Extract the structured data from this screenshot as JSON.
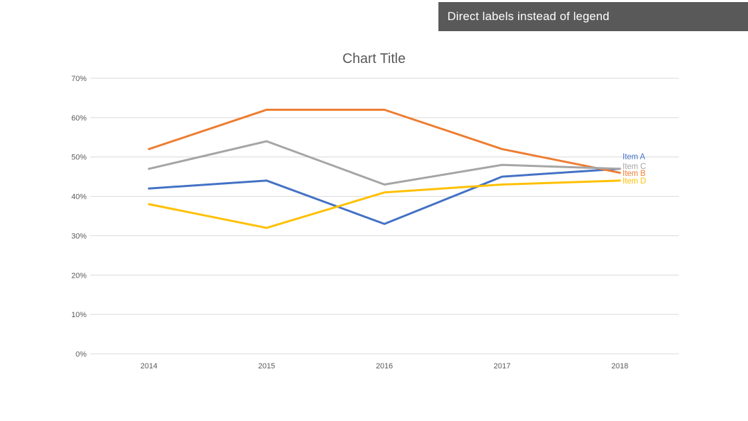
{
  "banner": {
    "title": "Direct labels instead of legend",
    "bg_color": "#595959",
    "text_color": "#FFFFFF"
  },
  "chart_data": {
    "type": "line",
    "title": "Chart Title",
    "categories": [
      "2014",
      "2015",
      "2016",
      "2017",
      "2018"
    ],
    "series": [
      {
        "name": "Item A",
        "color": "#4472C4",
        "values": [
          42,
          44,
          33,
          45,
          47
        ]
      },
      {
        "name": "Item B",
        "color": "#ED7D31",
        "values": [
          52,
          62,
          62,
          52,
          46
        ]
      },
      {
        "name": "Item C",
        "color": "#A5A5A5",
        "values": [
          47,
          54,
          43,
          48,
          47
        ]
      },
      {
        "name": "Item D",
        "color": "#FFC000",
        "values": [
          38,
          32,
          41,
          43,
          44
        ]
      }
    ],
    "ylim": [
      0,
      70
    ],
    "ytick_step": 10,
    "yticks": [
      "0%",
      "10%",
      "20%",
      "30%",
      "40%",
      "50%",
      "60%",
      "70%"
    ],
    "xlabel": "",
    "ylabel": "",
    "grid": true,
    "legend": "none",
    "direct_labels": [
      {
        "text": "Item A",
        "series": "Item A"
      },
      {
        "text": "Item C",
        "series": "Item C"
      },
      {
        "text": "Item B",
        "series": "Item B"
      },
      {
        "text": "Item D",
        "series": "Item D"
      }
    ],
    "gridline_color": "#D9D9D9",
    "axis_text_color": "#595959"
  }
}
